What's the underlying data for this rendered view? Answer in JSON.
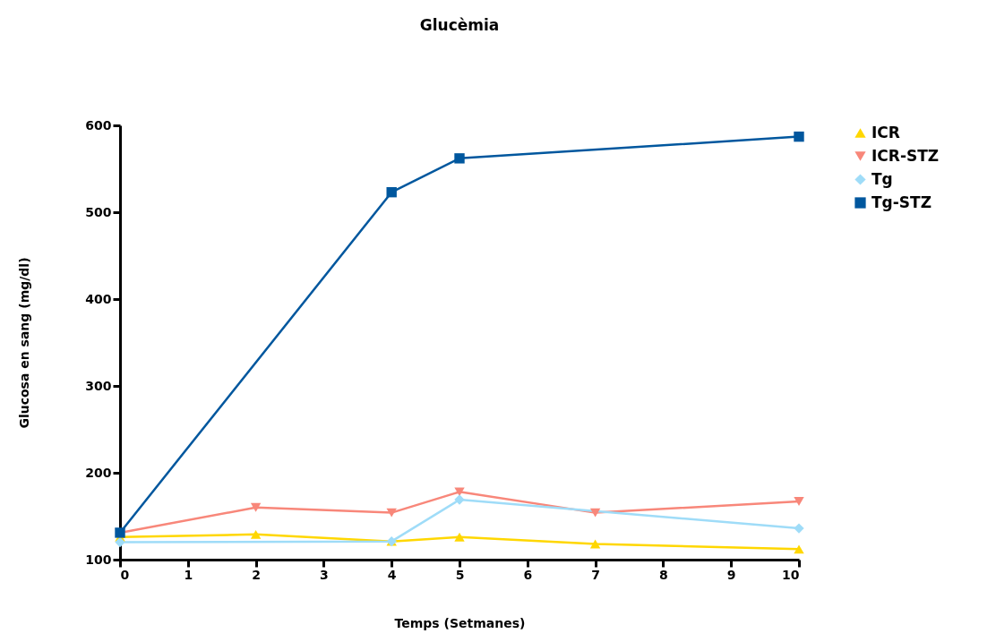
{
  "chart_data": {
    "type": "line",
    "title": "Glucèmia",
    "xlabel": "Temps (Setmanes)",
    "ylabel": "Glucosa en sang (mg/dl)",
    "xlim": [
      0,
      10
    ],
    "xticks": [
      0,
      1,
      2,
      3,
      4,
      5,
      6,
      7,
      8,
      9,
      10
    ],
    "ylim": [
      100,
      600
    ],
    "yticks": [
      100,
      200,
      300,
      400,
      500,
      600
    ],
    "grid": false,
    "legend": "top right",
    "series": [
      {
        "name": "ICR",
        "color": "#ffd700",
        "marker": "triangle",
        "x": [
          0,
          2,
          4,
          5,
          7,
          10
        ],
        "values": [
          126,
          129,
          121,
          126,
          118,
          112
        ]
      },
      {
        "name": "ICR-STZ",
        "color": "#f8877a",
        "marker": "triangle-down",
        "x": [
          0,
          2,
          4,
          5,
          7,
          10
        ],
        "values": [
          131,
          160,
          154,
          178,
          154,
          167
        ]
      },
      {
        "name": "Tg",
        "color": "#9fdcf8",
        "marker": "diamond",
        "x": [
          0,
          4,
          5,
          10
        ],
        "values": [
          120,
          121,
          169,
          136
        ]
      },
      {
        "name": "Tg-STZ",
        "color": "#00579e",
        "marker": "square",
        "x": [
          0,
          4,
          5,
          10
        ],
        "values": [
          131,
          523,
          562,
          587
        ]
      }
    ]
  }
}
